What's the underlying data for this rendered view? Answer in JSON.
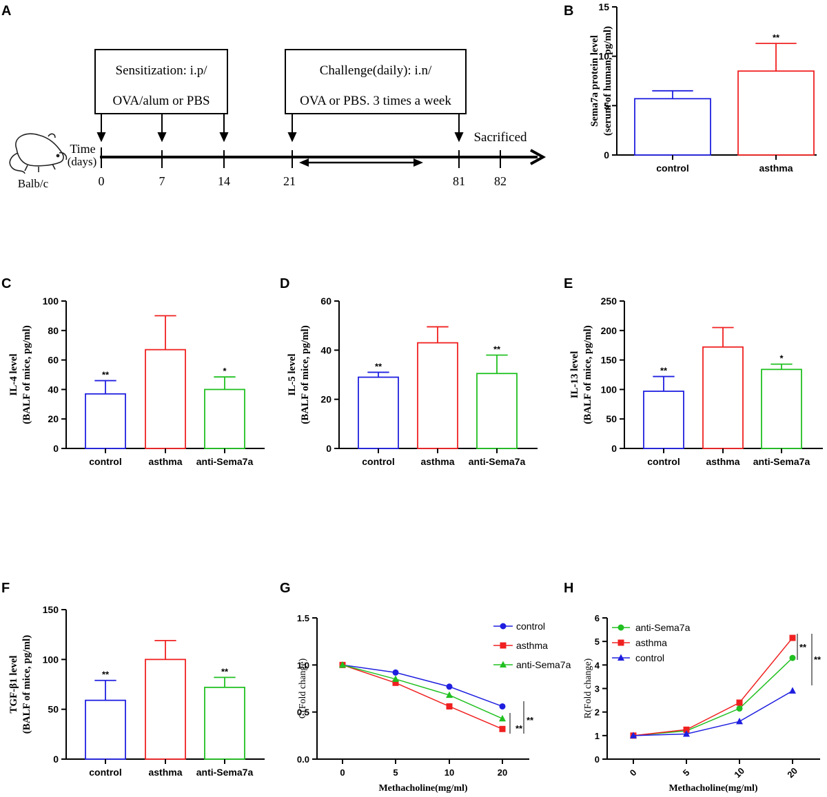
{
  "panel_labels": {
    "A": "A",
    "B": "B",
    "C": "C",
    "D": "D",
    "E": "E",
    "F": "F",
    "G": "G",
    "H": "H"
  },
  "timeline": {
    "sensitization_line1": "Sensitization: i.p/",
    "sensitization_line2": "OVA/alum or PBS",
    "challenge_line1": "Challenge(daily): i.n/",
    "challenge_line2": "OVA or PBS. 3 times a week",
    "time_line1": "Time",
    "time_line2": "(days)",
    "sacrificed": "Sacrificed",
    "mouse_label": "Balb/c",
    "days": [
      "0",
      "7",
      "14",
      "21",
      "81",
      "82"
    ]
  },
  "colors": {
    "blue": "#1f1fe0",
    "red": "#f02020",
    "green": "#20c020",
    "black": "#000000"
  },
  "chart_data": [
    {
      "id": "B",
      "type": "bar",
      "ylabel_line1": "Sema7a protein level",
      "ylabel_line2": "(serum of human, pg/ml)",
      "ylim": [
        0,
        15
      ],
      "yticks": [
        "0",
        "5",
        "10",
        "15"
      ],
      "categories": [
        "control",
        "asthma"
      ],
      "values": [
        5.7,
        8.5
      ],
      "errors": [
        0.8,
        2.8
      ],
      "significance": [
        "",
        "**"
      ]
    },
    {
      "id": "C",
      "type": "bar",
      "ylabel_line1": "IL-4 level",
      "ylabel_line2": "(BALF of mice, pg/ml)",
      "ylim": [
        0,
        100
      ],
      "yticks": [
        "0",
        "20",
        "40",
        "60",
        "80",
        "100"
      ],
      "categories": [
        "control",
        "asthma",
        "anti-Sema7a"
      ],
      "values": [
        37,
        67,
        40
      ],
      "errors": [
        9,
        23,
        8.5
      ],
      "significance": [
        "**",
        "",
        "*"
      ]
    },
    {
      "id": "D",
      "type": "bar",
      "ylabel_line1": "IL-5 level",
      "ylabel_line2": "(BALF of mice, pg/ml)",
      "ylim": [
        0,
        60
      ],
      "yticks": [
        "0",
        "20",
        "40",
        "60"
      ],
      "categories": [
        "control",
        "asthma",
        "anti-Sema7a"
      ],
      "values": [
        29,
        43,
        30.5
      ],
      "errors": [
        2,
        6.5,
        7.5
      ],
      "significance": [
        "**",
        "",
        "**"
      ]
    },
    {
      "id": "E",
      "type": "bar",
      "ylabel_line1": "IL-13 level",
      "ylabel_line2": "(BALF of mice, pg/ml)",
      "ylim": [
        0,
        250
      ],
      "yticks": [
        "0",
        "50",
        "100",
        "150",
        "200",
        "250"
      ],
      "categories": [
        "control",
        "asthma",
        "anti-Sema7a"
      ],
      "values": [
        97,
        172,
        134
      ],
      "errors": [
        25,
        33,
        9
      ],
      "significance": [
        "**",
        "",
        "*"
      ]
    },
    {
      "id": "F",
      "type": "bar",
      "ylabel_line1": "TGF-β1 level",
      "ylabel_line2": "(BALF of mice, pg/ml)",
      "ylim": [
        0,
        150
      ],
      "yticks": [
        "0",
        "50",
        "100",
        "150"
      ],
      "categories": [
        "control",
        "asthma",
        "anti-Sema7a"
      ],
      "values": [
        59,
        100,
        72
      ],
      "errors": [
        20,
        19,
        10
      ],
      "significance": [
        "**",
        "",
        "**"
      ]
    },
    {
      "id": "G",
      "type": "line",
      "ylabel": "C(Fold change)",
      "xlabel": "Methacholine(mg/ml)",
      "x": [
        "0",
        "5",
        "10",
        "20"
      ],
      "ylim": [
        0,
        1.5
      ],
      "yticks": [
        "0.0",
        "0.5",
        "1.0",
        "1.5"
      ],
      "series": [
        {
          "name": "control",
          "values": [
            1.0,
            0.92,
            0.77,
            0.56
          ]
        },
        {
          "name": "asthma",
          "values": [
            1.0,
            0.81,
            0.56,
            0.32
          ]
        },
        {
          "name": "anti-Sema7a",
          "values": [
            1.0,
            0.85,
            0.68,
            0.43
          ]
        }
      ],
      "significance": [
        "**",
        "**"
      ]
    },
    {
      "id": "H",
      "type": "line",
      "ylabel": "R(Fold change)",
      "xlabel": "Methacholine(mg/ml)",
      "x": [
        "0",
        "5",
        "10",
        "20"
      ],
      "ylim": [
        0,
        6
      ],
      "yticks": [
        "0",
        "1",
        "2",
        "3",
        "4",
        "5",
        "6"
      ],
      "series": [
        {
          "name": "anti-Sema7a",
          "values": [
            1.0,
            1.2,
            2.15,
            4.3
          ]
        },
        {
          "name": "asthma",
          "values": [
            1.0,
            1.25,
            2.4,
            5.15
          ]
        },
        {
          "name": "control",
          "values": [
            1.0,
            1.07,
            1.6,
            2.9
          ]
        }
      ],
      "significance": [
        "**",
        "**"
      ]
    }
  ]
}
